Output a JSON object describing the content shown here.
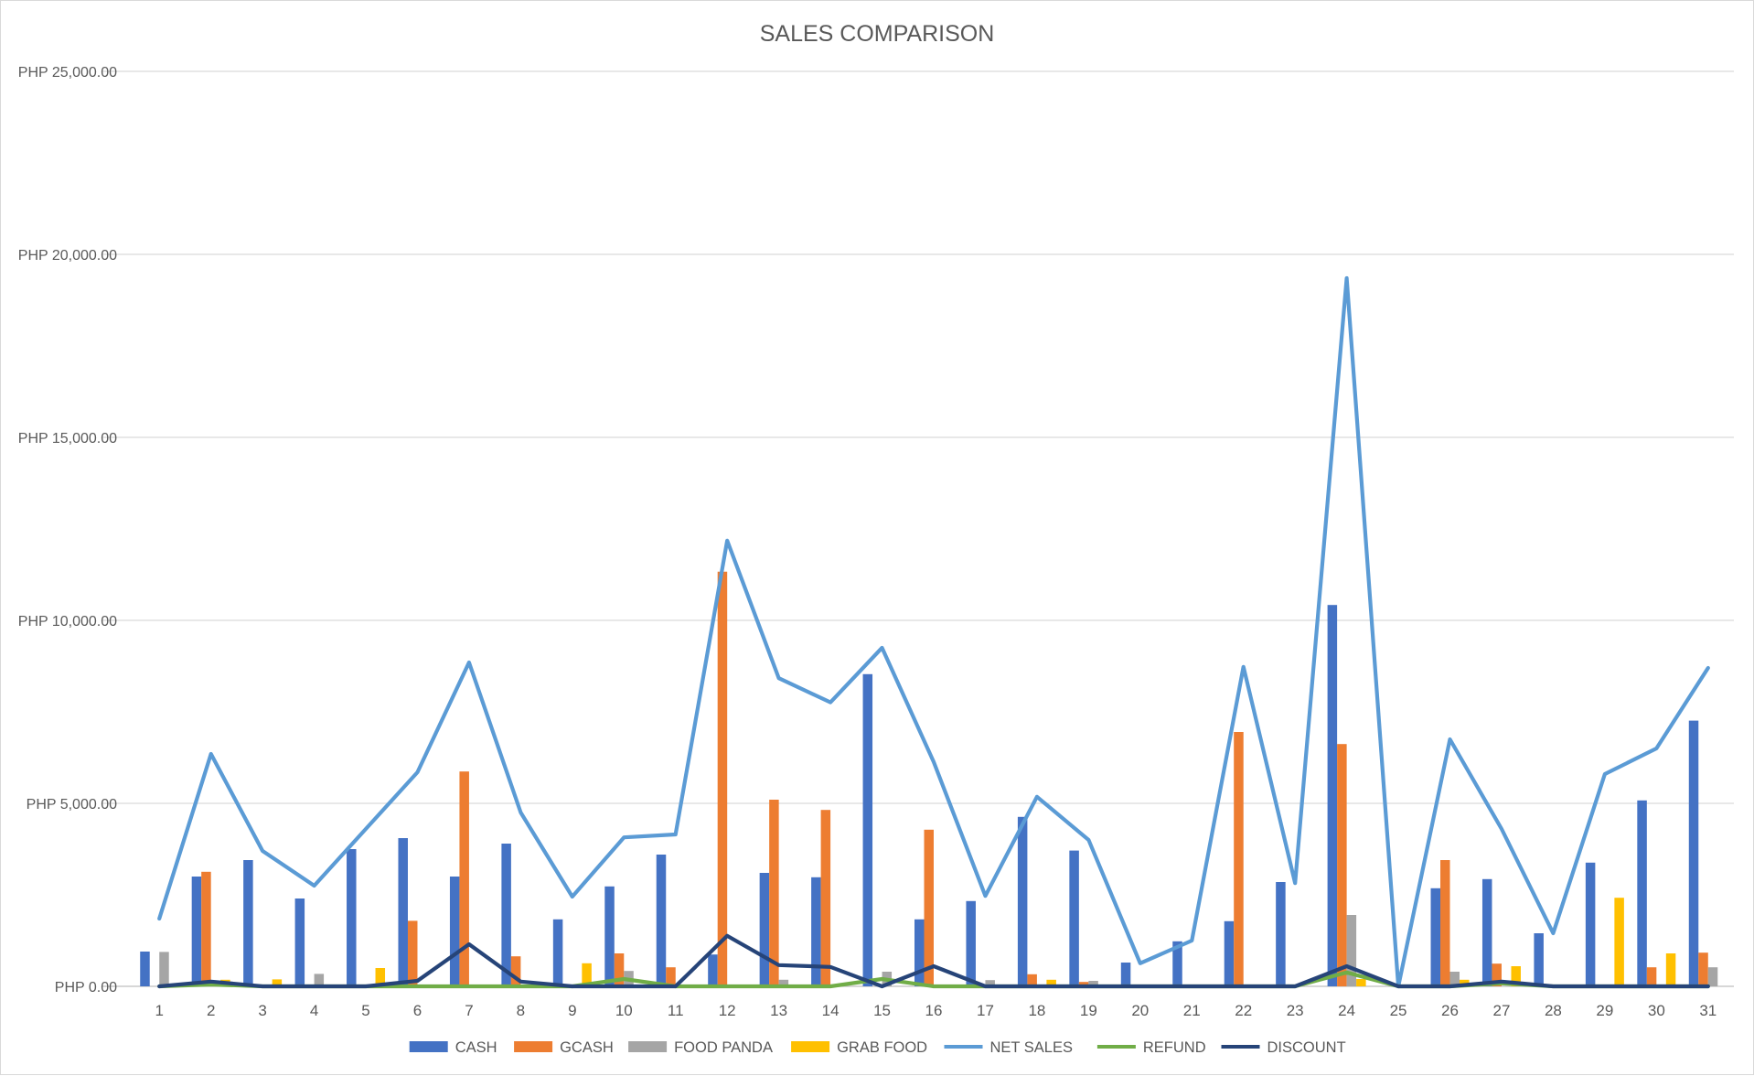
{
  "chart_data": {
    "type": "bar",
    "title": "SALES COMPARISON",
    "xlabel": "",
    "ylabel": "",
    "ylim": [
      0,
      25000
    ],
    "yticks": [
      0,
      5000,
      10000,
      15000,
      20000,
      25000
    ],
    "ytick_labels": [
      "PHP 0.00",
      "PHP 5,000.00",
      "PHP 10,000.00",
      "PHP 15,000.00",
      "PHP 20,000.00",
      "PHP 25,000.00"
    ],
    "grid": true,
    "legend_position": "bottom",
    "categories": [
      "1",
      "2",
      "3",
      "4",
      "5",
      "6",
      "7",
      "8",
      "9",
      "10",
      "11",
      "12",
      "13",
      "14",
      "15",
      "16",
      "17",
      "18",
      "19",
      "20",
      "21",
      "22",
      "23",
      "24",
      "25",
      "26",
      "27",
      "28",
      "29",
      "30",
      "31"
    ],
    "series": [
      {
        "name": "CASH",
        "kind": "bar",
        "color": "#4472c4",
        "values": [
          950,
          3000,
          3450,
          2400,
          3750,
          4050,
          3000,
          3900,
          1830,
          2730,
          3600,
          870,
          3100,
          2980,
          8530,
          1830,
          2330,
          4630,
          3710,
          650,
          1230,
          1780,
          2850,
          10420,
          0,
          2680,
          2930,
          1450,
          3380,
          5080,
          7260
        ]
      },
      {
        "name": "GCASH",
        "kind": "bar",
        "color": "#ed7d31",
        "values": [
          0,
          3130,
          0,
          0,
          0,
          1790,
          5870,
          820,
          0,
          900,
          520,
          11330,
          5100,
          4820,
          0,
          4280,
          0,
          330,
          120,
          0,
          0,
          6950,
          0,
          6620,
          0,
          3450,
          620,
          0,
          0,
          520,
          920
        ]
      },
      {
        "name": "FOOD PANDA",
        "kind": "bar",
        "color": "#a5a5a5",
        "values": [
          940,
          0,
          0,
          340,
          0,
          0,
          0,
          0,
          0,
          420,
          0,
          0,
          180,
          0,
          400,
          0,
          170,
          0,
          150,
          0,
          0,
          0,
          0,
          1950,
          0,
          400,
          0,
          0,
          0,
          0,
          520
        ]
      },
      {
        "name": "GRAB FOOD",
        "kind": "bar",
        "color": "#ffc000",
        "values": [
          0,
          180,
          190,
          0,
          500,
          0,
          0,
          0,
          630,
          0,
          0,
          0,
          0,
          0,
          0,
          0,
          0,
          180,
          0,
          0,
          0,
          0,
          0,
          200,
          0,
          180,
          550,
          0,
          2420,
          900,
          0
        ]
      },
      {
        "name": "NET SALES",
        "kind": "line",
        "color": "#5b9bd5",
        "values": [
          1850,
          6350,
          3700,
          2750,
          4300,
          5850,
          8850,
          4750,
          2450,
          4070,
          4150,
          12180,
          8420,
          7760,
          9250,
          6130,
          2470,
          5180,
          4000,
          630,
          1250,
          8730,
          2820,
          19350,
          0,
          6750,
          4300,
          1450,
          5800,
          6500,
          8700
        ]
      },
      {
        "name": "REFUND",
        "kind": "line",
        "color": "#70ad47",
        "values": [
          0,
          50,
          0,
          0,
          0,
          0,
          0,
          0,
          0,
          200,
          0,
          0,
          0,
          0,
          200,
          0,
          0,
          0,
          0,
          0,
          0,
          0,
          0,
          380,
          0,
          0,
          80,
          0,
          0,
          0,
          0
        ]
      },
      {
        "name": "DISCOUNT",
        "kind": "line",
        "color": "#264478",
        "values": [
          0,
          130,
          0,
          0,
          0,
          150,
          1150,
          130,
          0,
          0,
          0,
          1380,
          580,
          530,
          0,
          550,
          0,
          0,
          0,
          0,
          0,
          0,
          0,
          550,
          0,
          0,
          130,
          0,
          0,
          0,
          0
        ]
      }
    ]
  }
}
